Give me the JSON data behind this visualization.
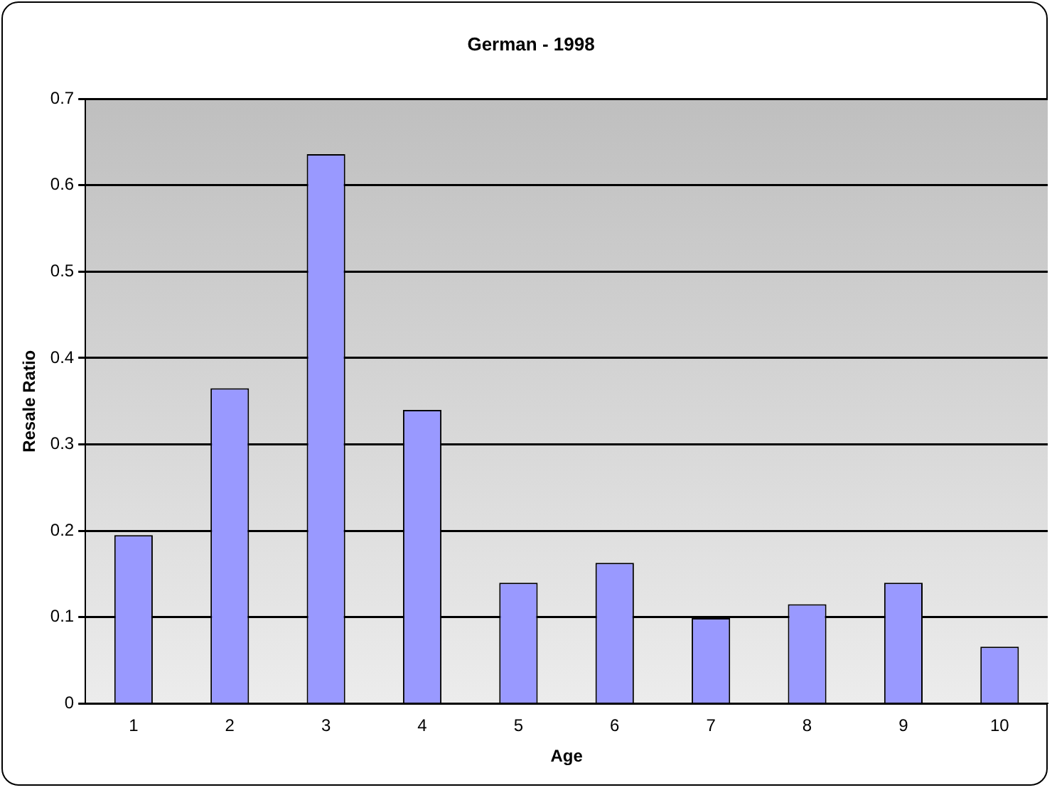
{
  "chart_data": {
    "type": "bar",
    "title": "German - 1998",
    "xlabel": "Age",
    "ylabel": "Resale Ratio",
    "categories": [
      "1",
      "2",
      "3",
      "4",
      "5",
      "6",
      "7",
      "8",
      "9",
      "10"
    ],
    "values": [
      0.195,
      0.365,
      0.636,
      0.34,
      0.14,
      0.163,
      0.099,
      0.115,
      0.14,
      0.066
    ],
    "color": "#9999ff",
    "ylim": [
      0,
      0.7
    ],
    "yticks": [
      0,
      0.1,
      0.2,
      0.3,
      0.4,
      0.5,
      0.6,
      0.7
    ],
    "grid": "y",
    "legend": false
  }
}
